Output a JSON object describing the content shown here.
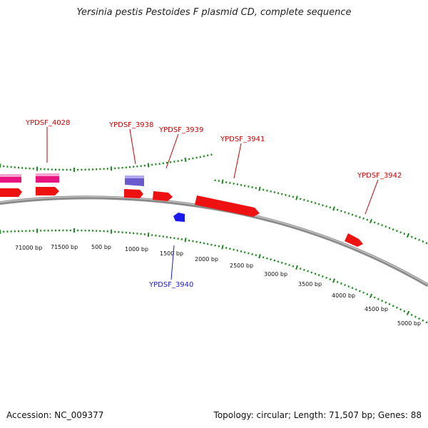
{
  "title": "Yersinia pestis Pestoides F plasmid CD, complete sequence",
  "footer": {
    "accession": "Accession: NC_009377",
    "summary": "Topology: circular; Length: 71,507 bp; Genes: 88"
  },
  "colors": {
    "backbone": "#888888",
    "tick": "#1a8a1a",
    "forward_gene": "#ee1111",
    "pink_gene": "#e8157f",
    "purple_gene": "#6a5acd",
    "reverse_gene": "#1a1aee",
    "label_forward": "#cc0000",
    "label_reverse": "#1a1acc"
  },
  "position_labels": [
    "71000 bp",
    "71500 bp",
    "500 bp",
    "1000 bp",
    "1500 bp",
    "2000 bp",
    "2500 bp",
    "3000 bp",
    "3500 bp",
    "4000 bp",
    "4500 bp",
    "5000 bp"
  ],
  "gene_labels": [
    {
      "text": "YPDSF_4028",
      "strand": "forward"
    },
    {
      "text": "YPDSF_3938",
      "strand": "forward"
    },
    {
      "text": "YPDSF_3939",
      "strand": "forward"
    },
    {
      "text": "YPDSF_3941",
      "strand": "forward"
    },
    {
      "text": "YPDSF_3942",
      "strand": "forward"
    },
    {
      "text": "YPDSF_3940",
      "strand": "reverse"
    }
  ]
}
